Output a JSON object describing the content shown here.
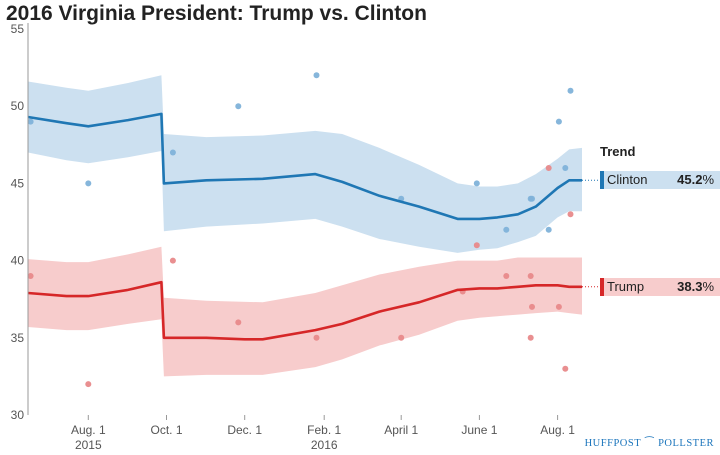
{
  "title": "2016 Virginia President: Trump vs. Clinton",
  "colors": {
    "clinton": "#1f77b4",
    "clinton_band": "#cce0f0",
    "clinton_dot": "#7fb2d9",
    "trump": "#d62728",
    "trump_band": "#f7cccc",
    "trump_dot": "#e8898a",
    "axis": "#999999",
    "tick_text": "#555555",
    "logo": "#1b75bc"
  },
  "trend": {
    "header": "Trend",
    "items": [
      {
        "key": "clinton",
        "name": "Clinton",
        "value": "45.2",
        "unit": "%"
      },
      {
        "key": "trump",
        "name": "Trump",
        "value": "38.3",
        "unit": "%"
      }
    ]
  },
  "logo": {
    "left": "HUFFPOST",
    "right": "POLLSTER",
    "mark_icon": "pollster-sail-icon"
  },
  "chart_data": {
    "type": "line",
    "title": "2016 Virginia President: Trump vs. Clinton",
    "xlabel": "",
    "ylabel": "",
    "xlim": [
      "2015-06-15",
      "2016-08-20"
    ],
    "ylim": [
      30,
      55
    ],
    "yticks": [
      30,
      35,
      40,
      45,
      50,
      55
    ],
    "xticks": [
      {
        "date": "2015-08-01",
        "label": "Aug. 1",
        "sub": "2015"
      },
      {
        "date": "2015-10-01",
        "label": "Oct. 1",
        "sub": ""
      },
      {
        "date": "2015-12-01",
        "label": "Dec. 1",
        "sub": ""
      },
      {
        "date": "2016-02-01",
        "label": "Feb. 1",
        "sub": "2016"
      },
      {
        "date": "2016-04-01",
        "label": "April 1",
        "sub": ""
      },
      {
        "date": "2016-06-01",
        "label": "June 1",
        "sub": ""
      },
      {
        "date": "2016-08-01",
        "label": "Aug. 1",
        "sub": ""
      }
    ],
    "grid": false,
    "legend": "right",
    "series": [
      {
        "name": "Clinton",
        "key": "clinton",
        "trend": [
          [
            "2015-06-15",
            49.3
          ],
          [
            "2015-07-15",
            48.9
          ],
          [
            "2015-08-01",
            48.7
          ],
          [
            "2015-09-01",
            49.1
          ],
          [
            "2015-09-27",
            49.5
          ],
          [
            "2015-09-29",
            45.0
          ],
          [
            "2015-11-01",
            45.2
          ],
          [
            "2015-12-15",
            45.3
          ],
          [
            "2016-01-25",
            45.6
          ],
          [
            "2016-02-15",
            45.1
          ],
          [
            "2016-03-15",
            44.2
          ],
          [
            "2016-04-15",
            43.5
          ],
          [
            "2016-05-15",
            42.7
          ],
          [
            "2016-06-01",
            42.7
          ],
          [
            "2016-06-15",
            42.8
          ],
          [
            "2016-07-01",
            43.0
          ],
          [
            "2016-07-15",
            43.5
          ],
          [
            "2016-08-01",
            44.7
          ],
          [
            "2016-08-10",
            45.2
          ],
          [
            "2016-08-20",
            45.2
          ]
        ],
        "band_upper": [
          [
            "2015-06-15",
            51.6
          ],
          [
            "2015-07-15",
            51.2
          ],
          [
            "2015-08-01",
            51.0
          ],
          [
            "2015-09-01",
            51.5
          ],
          [
            "2015-09-27",
            52.0
          ],
          [
            "2015-09-29",
            48.2
          ],
          [
            "2015-11-01",
            48.0
          ],
          [
            "2015-12-15",
            48.1
          ],
          [
            "2016-01-25",
            48.4
          ],
          [
            "2016-02-15",
            48.2
          ],
          [
            "2016-03-15",
            47.3
          ],
          [
            "2016-04-15",
            46.2
          ],
          [
            "2016-05-15",
            45.0
          ],
          [
            "2016-06-01",
            44.8
          ],
          [
            "2016-06-15",
            44.8
          ],
          [
            "2016-07-01",
            45.0
          ],
          [
            "2016-07-15",
            45.6
          ],
          [
            "2016-08-01",
            46.6
          ],
          [
            "2016-08-10",
            47.2
          ],
          [
            "2016-08-20",
            47.3
          ]
        ],
        "band_lower": [
          [
            "2015-06-15",
            47.0
          ],
          [
            "2015-07-15",
            46.5
          ],
          [
            "2015-08-01",
            46.3
          ],
          [
            "2015-09-01",
            46.7
          ],
          [
            "2015-09-27",
            47.1
          ],
          [
            "2015-09-29",
            41.9
          ],
          [
            "2015-11-01",
            42.2
          ],
          [
            "2015-12-15",
            42.4
          ],
          [
            "2016-01-25",
            42.7
          ],
          [
            "2016-02-15",
            42.2
          ],
          [
            "2016-03-15",
            41.4
          ],
          [
            "2016-04-15",
            40.9
          ],
          [
            "2016-05-15",
            40.5
          ],
          [
            "2016-06-01",
            40.7
          ],
          [
            "2016-06-15",
            40.8
          ],
          [
            "2016-07-01",
            41.2
          ],
          [
            "2016-07-15",
            41.6
          ],
          [
            "2016-08-01",
            42.8
          ],
          [
            "2016-08-10",
            43.2
          ],
          [
            "2016-08-20",
            43.2
          ]
        ],
        "polls": [
          [
            "2015-06-17",
            49
          ],
          [
            "2015-08-01",
            45
          ],
          [
            "2015-10-06",
            47
          ],
          [
            "2015-11-26",
            50
          ],
          [
            "2016-01-26",
            52
          ],
          [
            "2016-04-01",
            44
          ],
          [
            "2016-05-30",
            45
          ],
          [
            "2016-06-22",
            42
          ],
          [
            "2016-07-11",
            44
          ],
          [
            "2016-07-12",
            44
          ],
          [
            "2016-07-25",
            42
          ],
          [
            "2016-08-02",
            49
          ],
          [
            "2016-08-07",
            46
          ],
          [
            "2016-08-11",
            51
          ]
        ]
      },
      {
        "name": "Trump",
        "key": "trump",
        "trend": [
          [
            "2015-06-15",
            37.9
          ],
          [
            "2015-07-15",
            37.7
          ],
          [
            "2015-08-01",
            37.7
          ],
          [
            "2015-09-01",
            38.1
          ],
          [
            "2015-09-27",
            38.6
          ],
          [
            "2015-09-29",
            35.0
          ],
          [
            "2015-11-01",
            35.0
          ],
          [
            "2015-12-01",
            34.9
          ],
          [
            "2015-12-15",
            34.9
          ],
          [
            "2016-01-25",
            35.5
          ],
          [
            "2016-02-15",
            35.9
          ],
          [
            "2016-03-15",
            36.7
          ],
          [
            "2016-04-15",
            37.3
          ],
          [
            "2016-05-15",
            38.1
          ],
          [
            "2016-06-01",
            38.2
          ],
          [
            "2016-06-15",
            38.2
          ],
          [
            "2016-07-01",
            38.3
          ],
          [
            "2016-07-15",
            38.4
          ],
          [
            "2016-08-01",
            38.4
          ],
          [
            "2016-08-10",
            38.3
          ],
          [
            "2016-08-20",
            38.3
          ]
        ],
        "band_upper": [
          [
            "2015-06-15",
            40.1
          ],
          [
            "2015-07-15",
            39.9
          ],
          [
            "2015-08-01",
            39.9
          ],
          [
            "2015-09-01",
            40.4
          ],
          [
            "2015-09-27",
            40.9
          ],
          [
            "2015-09-29",
            37.6
          ],
          [
            "2015-11-01",
            37.4
          ],
          [
            "2015-12-15",
            37.3
          ],
          [
            "2016-01-25",
            37.9
          ],
          [
            "2016-02-15",
            38.4
          ],
          [
            "2016-03-15",
            39.1
          ],
          [
            "2016-04-15",
            39.6
          ],
          [
            "2016-05-15",
            40.0
          ],
          [
            "2016-06-01",
            40.0
          ],
          [
            "2016-06-15",
            40.0
          ],
          [
            "2016-07-01",
            40.2
          ],
          [
            "2016-07-15",
            40.2
          ],
          [
            "2016-08-01",
            40.2
          ],
          [
            "2016-08-10",
            40.2
          ],
          [
            "2016-08-20",
            40.2
          ]
        ],
        "band_lower": [
          [
            "2015-06-15",
            35.7
          ],
          [
            "2015-07-15",
            35.5
          ],
          [
            "2015-08-01",
            35.5
          ],
          [
            "2015-09-01",
            35.9
          ],
          [
            "2015-09-27",
            36.2
          ],
          [
            "2015-09-29",
            32.5
          ],
          [
            "2015-11-01",
            32.6
          ],
          [
            "2015-12-15",
            32.6
          ],
          [
            "2016-01-25",
            33.1
          ],
          [
            "2016-02-15",
            33.6
          ],
          [
            "2016-03-15",
            34.5
          ],
          [
            "2016-04-15",
            35.2
          ],
          [
            "2016-05-15",
            36.1
          ],
          [
            "2016-06-01",
            36.3
          ],
          [
            "2016-06-15",
            36.4
          ],
          [
            "2016-07-01",
            36.5
          ],
          [
            "2016-07-15",
            36.6
          ],
          [
            "2016-08-01",
            36.7
          ],
          [
            "2016-08-10",
            36.6
          ],
          [
            "2016-08-20",
            36.5
          ]
        ],
        "polls": [
          [
            "2015-06-17",
            39
          ],
          [
            "2015-08-01",
            32
          ],
          [
            "2015-10-06",
            40
          ],
          [
            "2015-11-26",
            36
          ],
          [
            "2016-01-26",
            35
          ],
          [
            "2016-04-01",
            35
          ],
          [
            "2016-05-19",
            38
          ],
          [
            "2016-05-30",
            41
          ],
          [
            "2016-06-22",
            39
          ],
          [
            "2016-07-11",
            39
          ],
          [
            "2016-07-11",
            35
          ],
          [
            "2016-07-12",
            37
          ],
          [
            "2016-07-25",
            46
          ],
          [
            "2016-08-02",
            37
          ],
          [
            "2016-08-07",
            33
          ],
          [
            "2016-08-11",
            43
          ]
        ]
      }
    ]
  }
}
